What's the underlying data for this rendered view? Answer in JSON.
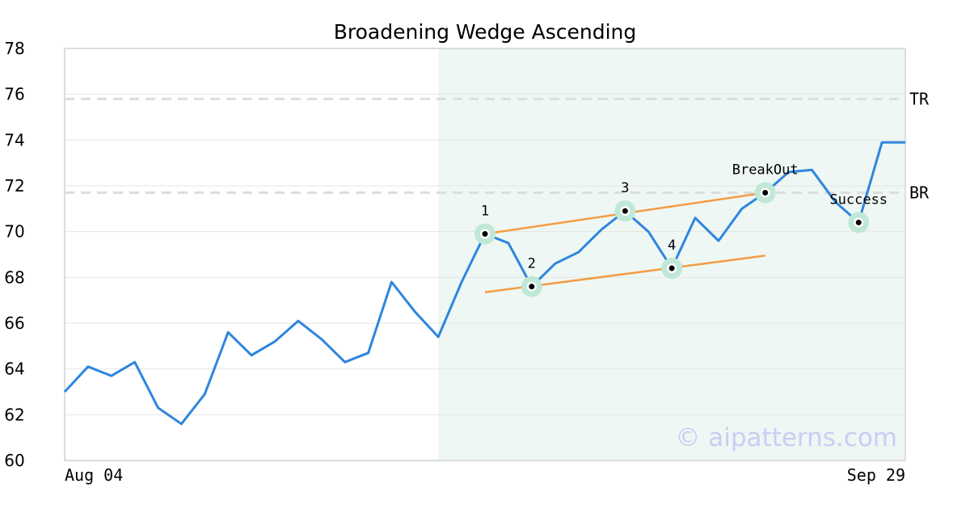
{
  "chart_data": {
    "type": "line",
    "title": "Broadening Wedge Ascending",
    "xlabel": "",
    "ylabel": "",
    "ylim": [
      60,
      78
    ],
    "yticks": [
      60,
      62,
      64,
      66,
      68,
      70,
      72,
      74,
      76,
      78
    ],
    "xtick_labels": [
      "Aug 04",
      "Sep 29"
    ],
    "grid": "horizontal",
    "series": [
      {
        "color": "#2e86de",
        "values": [
          63.0,
          64.1,
          63.7,
          64.3,
          62.3,
          61.6,
          62.9,
          65.6,
          64.6,
          65.2,
          66.1,
          65.3,
          64.3,
          64.7,
          67.8,
          66.5,
          65.4,
          67.8,
          69.9,
          69.5,
          67.6,
          68.6,
          69.1,
          70.1,
          70.9,
          70.0,
          68.4,
          70.6,
          69.6,
          71.0,
          71.7,
          72.6,
          72.7,
          71.3,
          70.4,
          73.9,
          73.9
        ]
      }
    ],
    "pattern_region": {
      "start_index": 16,
      "end_index": 36,
      "color": "#eef7f3"
    },
    "reference_lines": [
      {
        "label": "TR",
        "value": 75.8
      },
      {
        "label": "BR",
        "value": 71.7
      }
    ],
    "trendlines": [
      {
        "color": "#f39c42",
        "from": {
          "index": 18,
          "value": 69.9
        },
        "to": {
          "index": 30,
          "value": 71.7
        }
      },
      {
        "color": "#f39c42",
        "from": {
          "index": 18,
          "value": 67.35
        },
        "to": {
          "index": 30,
          "value": 68.95
        }
      }
    ],
    "points": [
      {
        "label": "1",
        "index": 18,
        "value": 69.9
      },
      {
        "label": "2",
        "index": 20,
        "value": 67.6
      },
      {
        "label": "3",
        "index": 24,
        "value": 70.9
      },
      {
        "label": "4",
        "index": 26,
        "value": 68.4
      },
      {
        "label": "BreakOut",
        "index": 30,
        "value": 71.7
      },
      {
        "label": "Success",
        "index": 34,
        "value": 70.4
      }
    ]
  },
  "watermark": {
    "text": "© aipatterns.com",
    "color": "#ccccf5"
  }
}
